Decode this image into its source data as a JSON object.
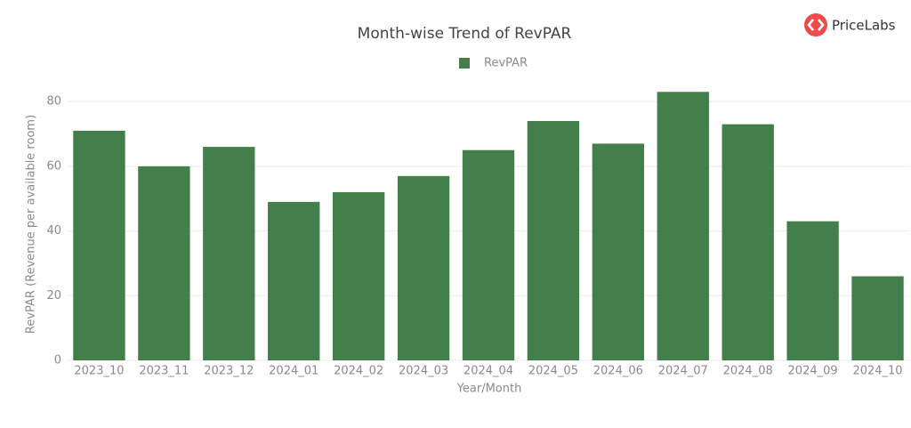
{
  "brand": "PriceLabs",
  "chart_data": {
    "type": "bar",
    "title": "Month-wise Trend of RevPAR",
    "categories": [
      "2023_10",
      "2023_11",
      "2023_12",
      "2024_01",
      "2024_02",
      "2024_03",
      "2024_04",
      "2024_05",
      "2024_06",
      "2024_07",
      "2024_08",
      "2024_09",
      "2024_10"
    ],
    "series": [
      {
        "name": "RevPAR",
        "color": "#427f4b",
        "values": [
          71,
          60,
          66,
          49,
          52,
          57,
          65,
          74,
          67,
          83,
          73,
          43,
          26
        ]
      }
    ],
    "x_label": "Year/Month",
    "y_label": "RevPAR (Revenue per available room)",
    "ylim": [
      0,
      85
    ],
    "yticks": [
      0,
      20,
      40,
      60,
      80
    ],
    "grid": true
  }
}
